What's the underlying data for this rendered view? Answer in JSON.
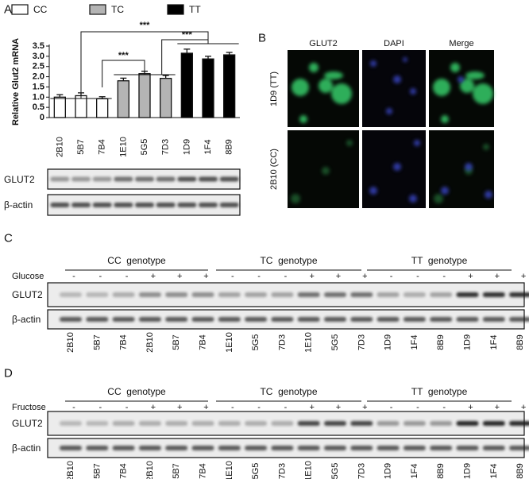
{
  "panel_labels": [
    "A",
    "B",
    "C",
    "D"
  ],
  "chart_data": {
    "type": "bar",
    "y_label": "Relative Glut2 mRNA",
    "categories": [
      "2B10",
      "5B7",
      "7B4",
      "1E10",
      "5G5",
      "7D3",
      "1D9",
      "1F4",
      "8B9"
    ],
    "category_label_colors": [
      "#e03c3c",
      "#e03c3c",
      "#e03c3c",
      "#111111",
      "#111111",
      "#111111",
      "#2e8b3a",
      "#2e8b3a",
      "#2e8b3a"
    ],
    "series": [
      {
        "name": "CC",
        "color": "#ffffff",
        "values": [
          1.0,
          1.07,
          0.92,
          null,
          null,
          null,
          null,
          null,
          null
        ],
        "errors": [
          0.12,
          0.14,
          0.1,
          null,
          null,
          null,
          null,
          null,
          null
        ]
      },
      {
        "name": "TC",
        "color": "#b4b4b4",
        "values": [
          null,
          null,
          null,
          1.8,
          2.15,
          1.92,
          null,
          null,
          null
        ],
        "errors": [
          null,
          null,
          null,
          0.13,
          0.12,
          0.14,
          null,
          null,
          null
        ]
      },
      {
        "name": "TT",
        "color": "#000000",
        "values": [
          null,
          null,
          null,
          null,
          null,
          null,
          3.15,
          2.87,
          3.07
        ],
        "errors": [
          null,
          null,
          null,
          null,
          null,
          null,
          0.2,
          0.13,
          0.12
        ]
      }
    ],
    "ylim": [
      0,
      3.5
    ],
    "yticks": [
      0,
      0.5,
      {
        "value": 1,
        "label": "1.0"
      },
      1.5,
      {
        "value": 2,
        "label": "2.0"
      },
      2.5,
      {
        "value": 3,
        "label": "3.0"
      },
      3.5
    ],
    "annotations": [
      "***",
      "***",
      "***"
    ]
  },
  "blot_a": {
    "rows": [
      "GLUT2",
      "β-actin"
    ]
  },
  "panel_b": {
    "columns": [
      "GLUT2",
      "DAPI",
      "Merge"
    ],
    "rows": [
      "1D9 (TT)",
      "2B10 (CC)"
    ]
  },
  "panel_c": {
    "genotypes": [
      "CC  genotype",
      "TC  genotype",
      "TT  genotype"
    ],
    "treatment": "Glucose",
    "signs": [
      "-",
      "-",
      "-",
      "+",
      "+",
      "+",
      "-",
      "-",
      "-",
      "+",
      "+",
      "+",
      "-",
      "-",
      "-",
      "+",
      "+",
      "+"
    ],
    "rows": [
      "GLUT2",
      "β-actin"
    ],
    "lanes": [
      "2B10",
      "5B7",
      "7B4",
      "2B10",
      "5B7",
      "7B4",
      "1E10",
      "5G5",
      "7D3",
      "1E10",
      "5G5",
      "7D3",
      "1D9",
      "1F4",
      "8B9",
      "1D9",
      "1F4",
      "8B9"
    ],
    "lane_colors": [
      "#e03c3c",
      "#e03c3c",
      "#e03c3c",
      "#e03c3c",
      "#e03c3c",
      "#e03c3c",
      "#111111",
      "#111111",
      "#111111",
      "#111111",
      "#111111",
      "#111111",
      "#2e8b3a",
      "#2e8b3a",
      "#2e8b3a",
      "#2e8b3a",
      "#2e8b3a",
      "#2e8b3a"
    ]
  },
  "panel_d": {
    "genotypes": [
      "CC  genotype",
      "TC  genotype",
      "TT  genotype"
    ],
    "treatment": "Fructose",
    "signs": [
      "-",
      "-",
      "-",
      "+",
      "+",
      "+",
      "-",
      "-",
      "-",
      "+",
      "+",
      "+",
      "-",
      "-",
      "-",
      "+",
      "+",
      "+"
    ],
    "rows": [
      "GLUT2",
      "β-actin"
    ],
    "lanes": [
      "2B10",
      "5B7",
      "7B4",
      "2B10",
      "5B7",
      "7B4",
      "1E10",
      "5G5",
      "7D3",
      "1E10",
      "5G5",
      "7D3",
      "1D9",
      "1F4",
      "8B9",
      "1D9",
      "1F4",
      "8B9"
    ],
    "lane_colors": [
      "#e03c3c",
      "#e03c3c",
      "#e03c3c",
      "#e03c3c",
      "#e03c3c",
      "#e03c3c",
      "#111111",
      "#111111",
      "#111111",
      "#111111",
      "#111111",
      "#111111",
      "#2e8b3a",
      "#2e8b3a",
      "#2e8b3a",
      "#2e8b3a",
      "#2e8b3a",
      "#2e8b3a"
    ]
  }
}
